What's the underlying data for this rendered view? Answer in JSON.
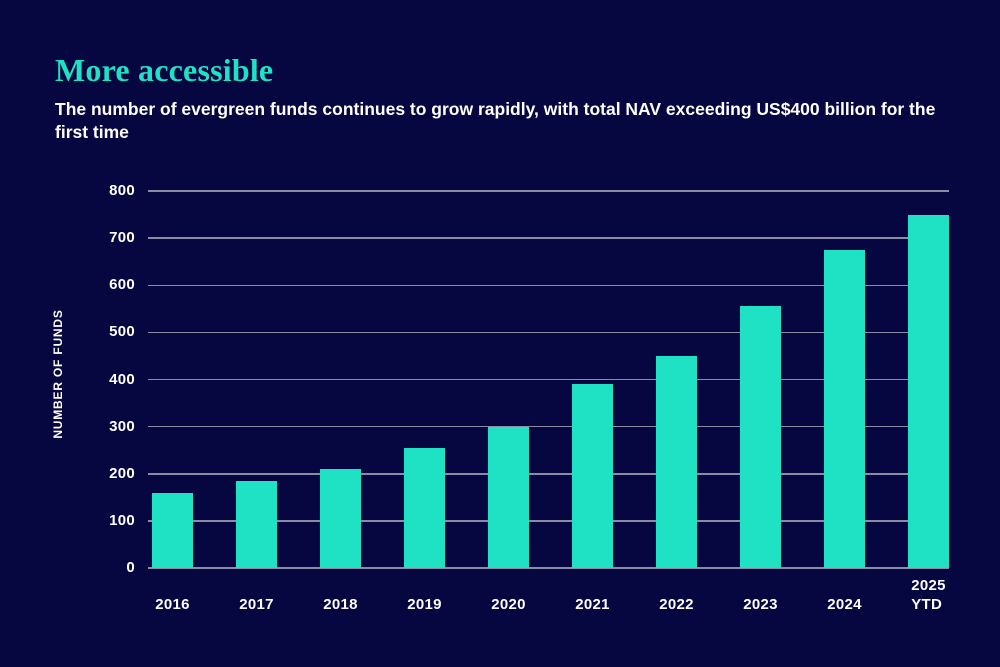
{
  "header": {
    "title": "More accessible",
    "subtitle": "The number of evergreen funds continues to grow rapidly, with total NAV exceeding US$400 billion for the first time"
  },
  "colors": {
    "background": "#060640",
    "accent": "#1FE2C5",
    "gridline": "#8B8BA3",
    "text": "#FFFFFF"
  },
  "chart_data": {
    "type": "bar",
    "title": "More accessible",
    "categories": [
      "2016",
      "2017",
      "2018",
      "2019",
      "2020",
      "2021",
      "2022",
      "2023",
      "2024",
      "2025\nYTD"
    ],
    "values": [
      160,
      185,
      210,
      255,
      300,
      390,
      450,
      555,
      675,
      750
    ],
    "xlabel": "",
    "ylabel": "NUMBER OF FUNDS",
    "ylim": [
      0,
      800
    ],
    "ytick_interval": 100,
    "grid": true,
    "legend": false,
    "bar_color": "#1FE2C5"
  }
}
